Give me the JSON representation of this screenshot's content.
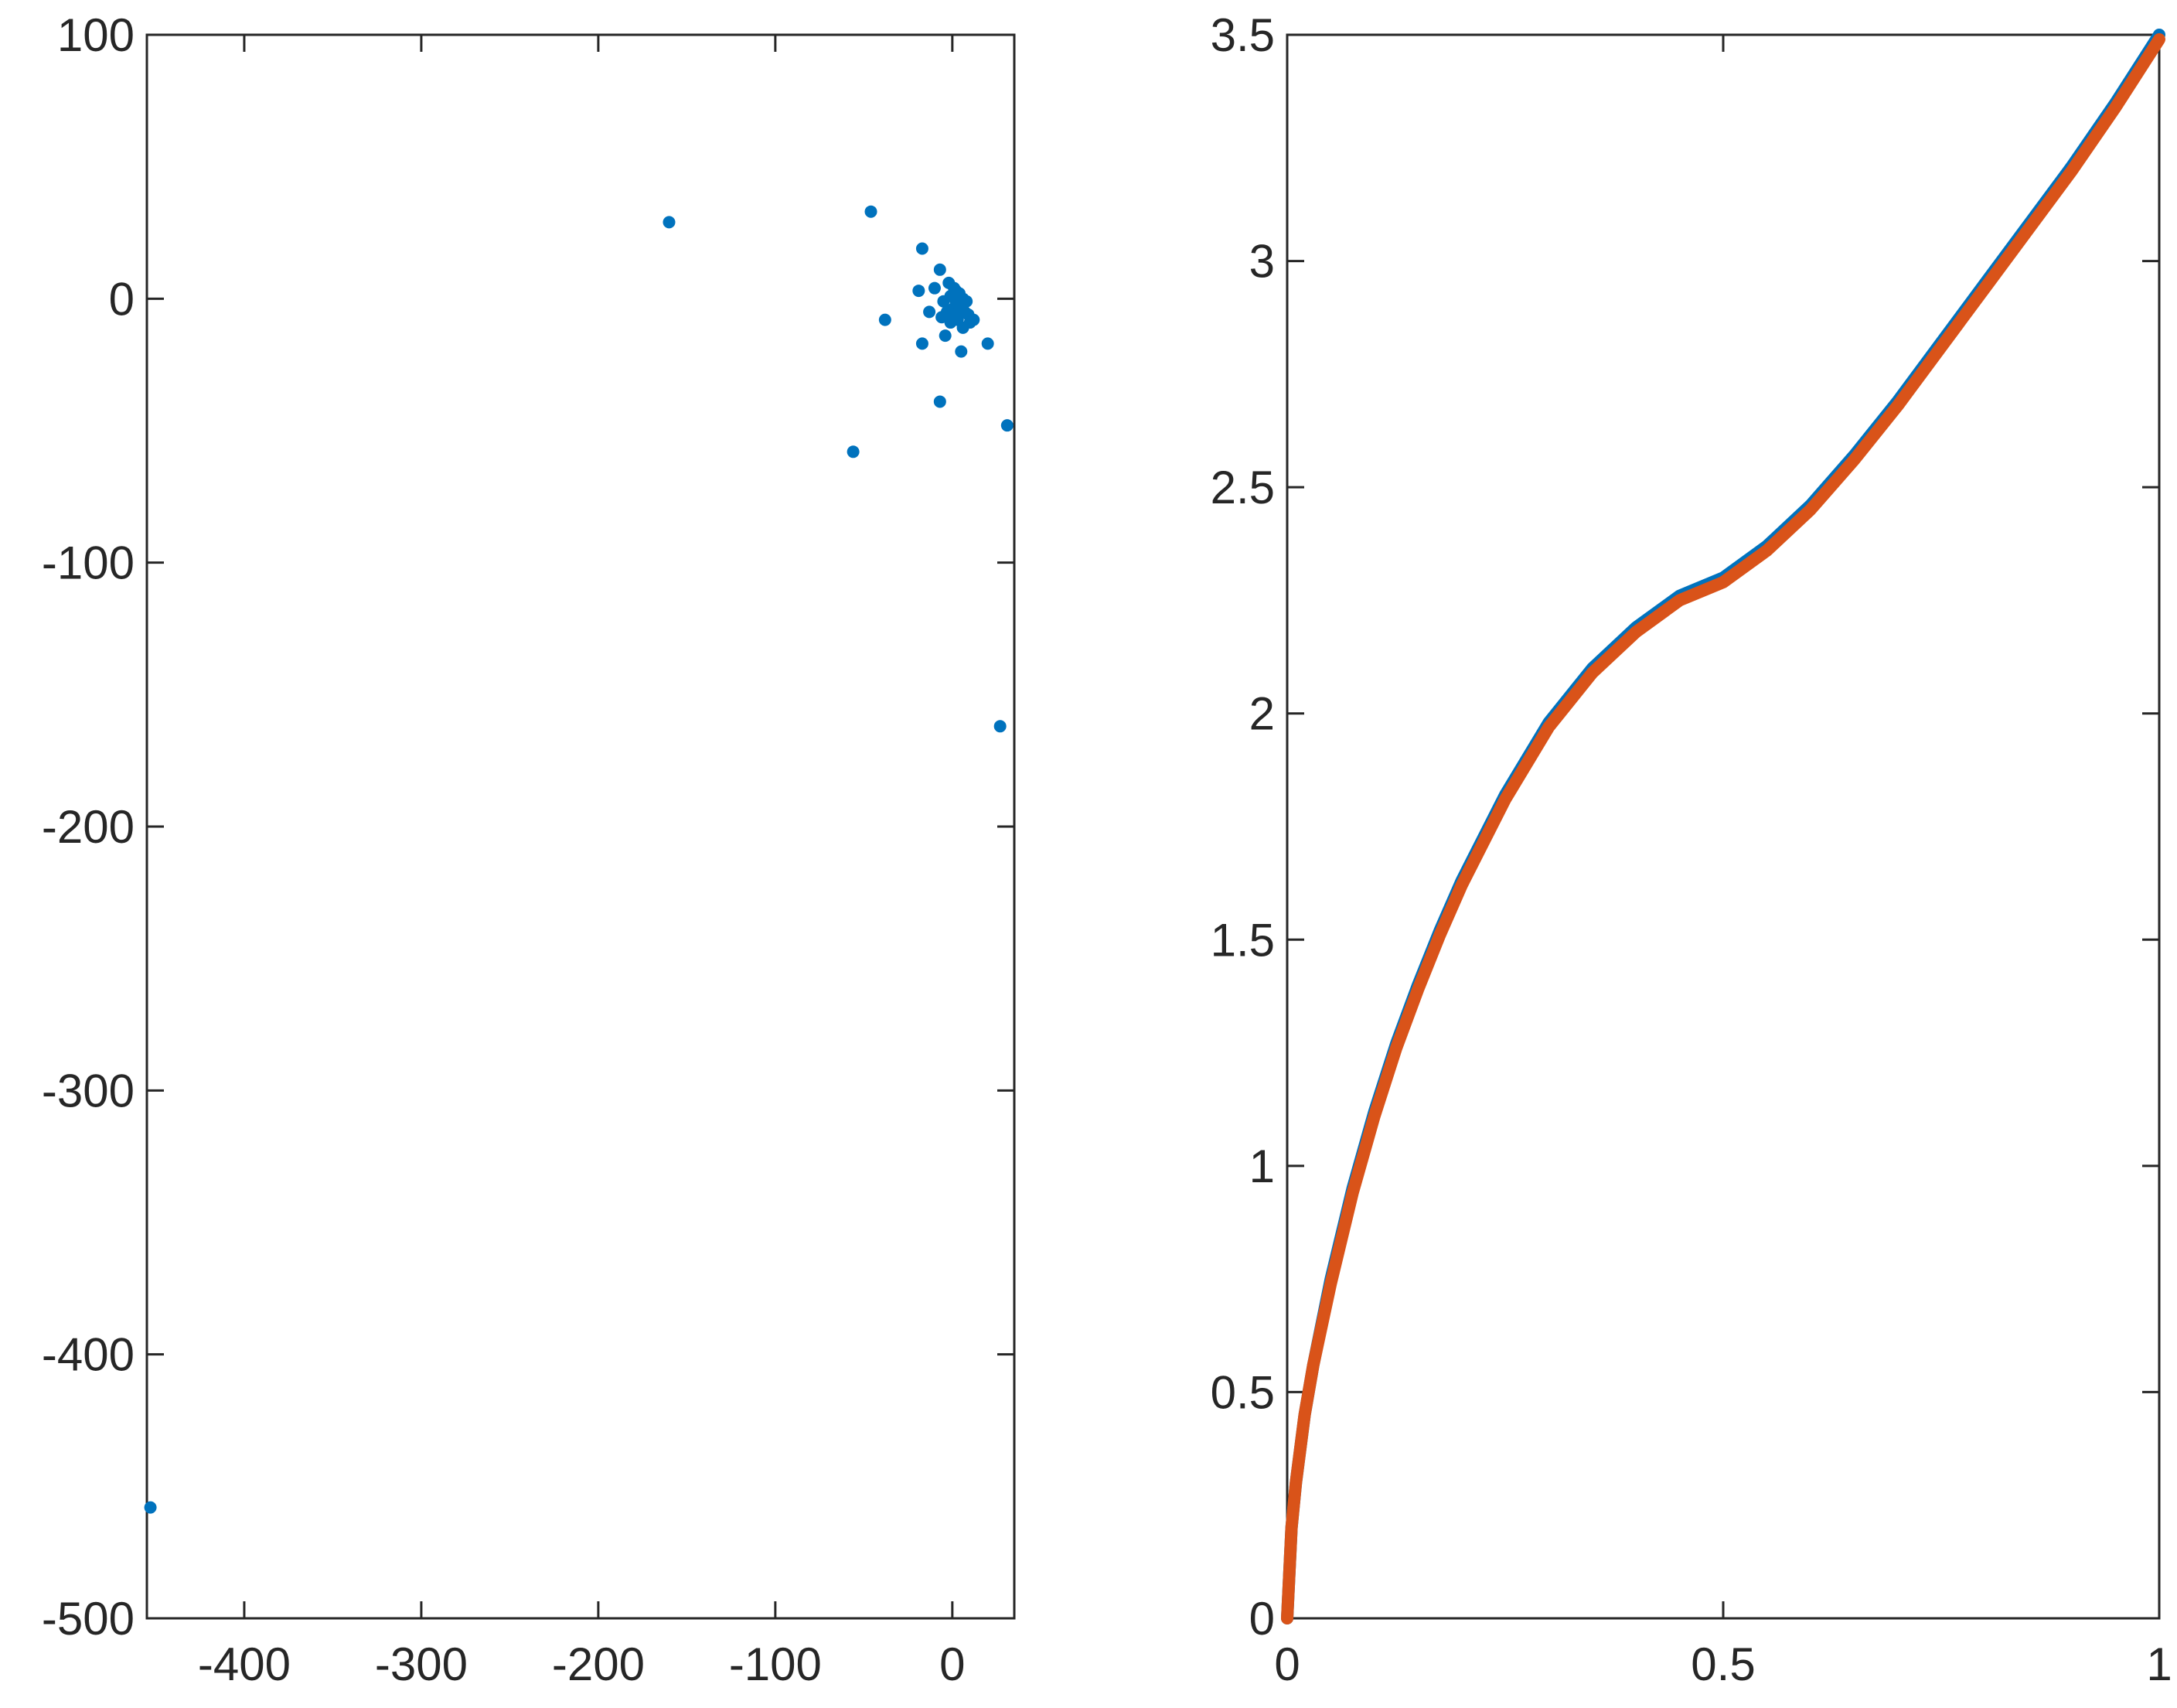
{
  "chart_data": [
    {
      "type": "scatter",
      "xlim": [
        -455,
        35
      ],
      "ylim": [
        -500,
        100
      ],
      "xticks": [
        -400,
        -300,
        -200,
        -100,
        0
      ],
      "yticks": [
        100,
        0,
        -100,
        -200,
        -300,
        -400,
        -500
      ],
      "grid": false,
      "series": [
        {
          "color": "#0072BD",
          "points": [
            [
              -453,
              -458
            ],
            [
              -160,
              29
            ],
            [
              -46,
              33
            ],
            [
              -17,
              19
            ],
            [
              -38,
              -8
            ],
            [
              -56,
              -58
            ],
            [
              -7,
              -39
            ],
            [
              31,
              -48
            ],
            [
              27,
              -162
            ],
            [
              -19,
              3
            ],
            [
              -17,
              -17
            ],
            [
              -13,
              -5
            ],
            [
              -10,
              4
            ],
            [
              -7,
              11
            ],
            [
              -5,
              -1
            ],
            [
              -4,
              -14
            ],
            [
              -2,
              6
            ],
            [
              -1,
              1
            ],
            [
              0,
              -4
            ],
            [
              1,
              4
            ],
            [
              2,
              -2
            ],
            [
              3,
              -8
            ],
            [
              4,
              2
            ],
            [
              5,
              -20
            ],
            [
              6,
              -11
            ],
            [
              7,
              -5
            ],
            [
              8,
              -1
            ],
            [
              9,
              -6
            ],
            [
              10,
              -9
            ],
            [
              12,
              -8
            ],
            [
              20,
              -17
            ],
            [
              -3,
              -5
            ],
            [
              -1,
              -9
            ],
            [
              2,
              3
            ],
            [
              4,
              -3
            ],
            [
              6,
              0
            ],
            [
              1,
              -6
            ],
            [
              -6,
              -7
            ],
            [
              3,
              -1
            ],
            [
              5,
              -5
            ]
          ]
        }
      ]
    },
    {
      "type": "line",
      "xlim": [
        0,
        1
      ],
      "ylim": [
        0,
        3.5
      ],
      "xticks": [
        0,
        0.5,
        1
      ],
      "yticks": [
        3.5,
        3,
        2.5,
        2,
        1.5,
        1,
        0.5,
        0
      ],
      "grid": false,
      "series": [
        {
          "color": "#0072BD",
          "x": [
            0,
            0.005,
            0.01,
            0.02,
            0.03,
            0.05,
            0.075,
            0.1,
            0.125,
            0.15,
            0.175,
            0.2,
            0.25,
            0.3,
            0.35,
            0.4,
            0.45,
            0.5,
            0.55,
            0.6,
            0.65,
            0.7,
            0.75,
            0.8,
            0.85,
            0.9,
            0.95,
            1
          ],
          "y": [
            0,
            0.2,
            0.3,
            0.45,
            0.56,
            0.75,
            0.95,
            1.12,
            1.27,
            1.4,
            1.52,
            1.63,
            1.82,
            1.98,
            2.1,
            2.19,
            2.26,
            2.3,
            2.37,
            2.46,
            2.57,
            2.69,
            2.82,
            2.95,
            3.08,
            3.21,
            3.35,
            3.5
          ]
        },
        {
          "color": "#D95319",
          "x": [
            0,
            0.005,
            0.01,
            0.02,
            0.03,
            0.05,
            0.075,
            0.1,
            0.125,
            0.15,
            0.175,
            0.2,
            0.25,
            0.3,
            0.35,
            0.4,
            0.45,
            0.5,
            0.55,
            0.6,
            0.65,
            0.7,
            0.75,
            0.8,
            0.85,
            0.9,
            0.95,
            1
          ],
          "y": [
            0,
            0.2,
            0.3,
            0.45,
            0.56,
            0.74,
            0.94,
            1.11,
            1.26,
            1.39,
            1.51,
            1.62,
            1.81,
            1.97,
            2.09,
            2.18,
            2.25,
            2.29,
            2.36,
            2.45,
            2.56,
            2.68,
            2.81,
            2.94,
            3.07,
            3.2,
            3.34,
            3.49
          ]
        }
      ]
    }
  ]
}
